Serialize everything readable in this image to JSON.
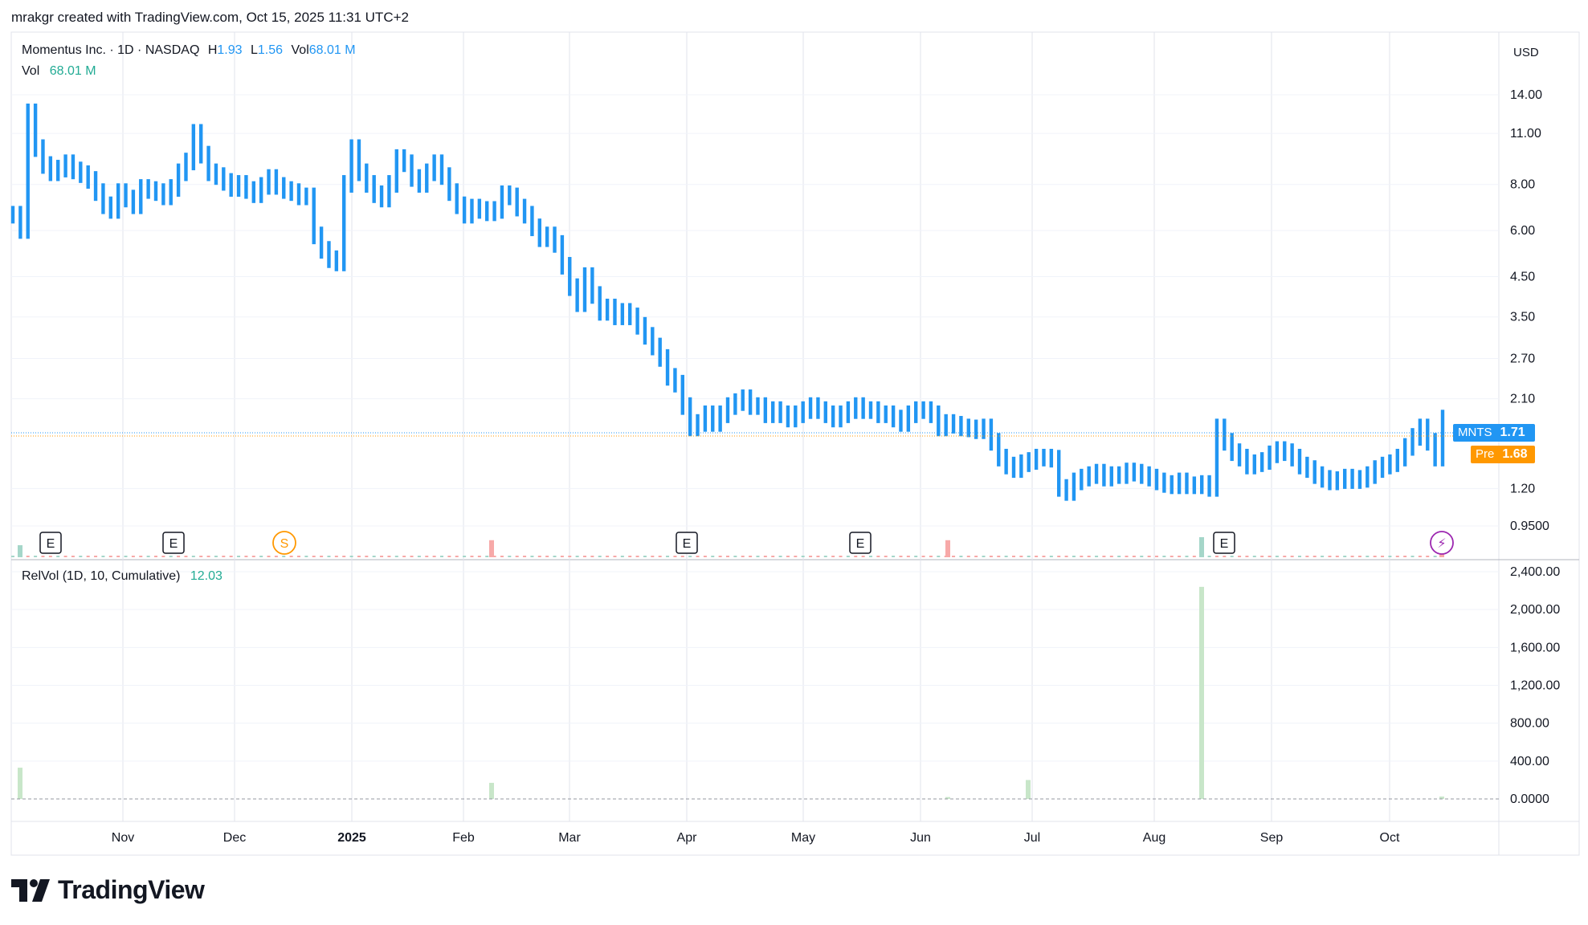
{
  "header": {
    "text": "mrakgr created with TradingView.com, Oct 15, 2025 11:31 UTC+2"
  },
  "legend": {
    "title": "Momentus Inc. · 1D · NASDAQ",
    "h_label": "H",
    "h_value": "1.93",
    "l_label": "L",
    "l_value": "1.56",
    "vol_label": "Vol",
    "vol_value": "68.01 M",
    "vol2_label": "Vol",
    "vol2_value": "68.01 M",
    "relvol_label": "RelVol (1D, 10, Cumulative)",
    "relvol_value": "12.03"
  },
  "price_axis": {
    "currency": "USD"
  },
  "tags": {
    "mnts_symbol": "MNTS",
    "mnts_value": "1.71",
    "pre_symbol": "Pre",
    "pre_value": "1.68"
  },
  "brand": {
    "name": "TradingView"
  },
  "colors": {
    "up": "#2196f3",
    "relvol": "#c8e6c9",
    "vol_up": "#a5d6c9",
    "vol_down": "#f7a9a8",
    "grid": "#e0e3eb",
    "pre": "#ff9800"
  },
  "chart_data": [
    {
      "type": "bar",
      "subtype": "ohlc-price",
      "title": "Momentus Inc. · 1D · NASDAQ",
      "scale": "log",
      "y_ticks": [
        "14.00",
        "11.00",
        "8.00",
        "6.00",
        "4.50",
        "3.50",
        "2.70",
        "2.10",
        "1.20",
        "0.9500"
      ],
      "y_tick_values": [
        14.0,
        11.0,
        8.0,
        6.0,
        4.5,
        3.5,
        2.7,
        2.1,
        1.2,
        0.95
      ],
      "x_ticks": [
        "Nov",
        "Dec",
        "2025",
        "Feb",
        "Mar",
        "Apr",
        "May",
        "Jun",
        "Jul",
        "Aug",
        "Sep",
        "Oct"
      ],
      "events": [
        {
          "label": "E",
          "date": "Oct 2024"
        },
        {
          "label": "E",
          "date": "Nov 2024"
        },
        {
          "label": "S",
          "date": "Dec 2024"
        },
        {
          "label": "E",
          "date": "Apr 2025"
        },
        {
          "label": "E",
          "date": "May 2025"
        },
        {
          "label": "E",
          "date": "Aug 2025"
        },
        {
          "label": "⚡",
          "date": "Oct 2025"
        }
      ],
      "series": [
        {
          "values": [
            6.6,
            6.0,
            12.5,
            10.0,
            9.0,
            8.6,
            8.8,
            9.1,
            8.7,
            8.5,
            8.2,
            7.6,
            7.0,
            6.8,
            7.6,
            7.3,
            7.0,
            7.8,
            7.7,
            7.6,
            7.4,
            7.8,
            8.6,
            9.2,
            11.0,
            9.6,
            8.6,
            8.4,
            8.1,
            7.8,
            8.0,
            7.7,
            7.5,
            7.9,
            8.3,
            7.9,
            7.7,
            7.6,
            7.4,
            7.4,
            5.8,
            5.3,
            5.0,
            4.9,
            8.0,
            10.0,
            8.6,
            8.0,
            7.5,
            7.3,
            8.0,
            9.4,
            9.1,
            8.3,
            8.0,
            8.6,
            9.1,
            8.4,
            7.6,
            7.0,
            6.6,
            6.9,
            6.8,
            6.7,
            6.8,
            7.5,
            7.4,
            6.9,
            6.6,
            6.1,
            5.7,
            5.8,
            5.5,
            4.8,
            4.2,
            3.8,
            4.5,
            4.0,
            3.6,
            3.7,
            3.5,
            3.6,
            3.5,
            3.3,
            3.1,
            2.9,
            2.7,
            2.4,
            2.3,
            2.0,
            1.75,
            1.8,
            1.9,
            1.8,
            1.9,
            2.0,
            2.05,
            2.1,
            2.0,
            2.0,
            1.9,
            1.95,
            1.9,
            1.85,
            1.9,
            1.95,
            2.0,
            1.95,
            1.9,
            1.85,
            1.9,
            1.95,
            2.0,
            1.95,
            1.95,
            1.9,
            1.9,
            1.85,
            1.8,
            1.9,
            1.95,
            1.95,
            1.9,
            1.75,
            1.8,
            1.78,
            1.75,
            1.74,
            1.72,
            1.75,
            1.6,
            1.45,
            1.38,
            1.35,
            1.4,
            1.42,
            1.45,
            1.45,
            1.44,
            1.2,
            1.17,
            1.25,
            1.28,
            1.3,
            1.32,
            1.28,
            1.3,
            1.3,
            1.33,
            1.32,
            1.3,
            1.28,
            1.25,
            1.23,
            1.22,
            1.25,
            1.22,
            1.22,
            1.23,
            1.2,
            1.75,
            1.6,
            1.5,
            1.45,
            1.38,
            1.4,
            1.42,
            1.48,
            1.52,
            1.5,
            1.45,
            1.38,
            1.35,
            1.3,
            1.27,
            1.25,
            1.26,
            1.28,
            1.26,
            1.27,
            1.3,
            1.35,
            1.38,
            1.4,
            1.45,
            1.55,
            1.65,
            1.75,
            1.6,
            1.45,
            1.85
          ]
        }
      ]
    },
    {
      "type": "bar",
      "subtype": "volume",
      "title": "Vol",
      "highlights": [
        {
          "date": "Oct 2024",
          "relative": 0.6,
          "direction": "up"
        },
        {
          "date": "Feb 2025",
          "relative": 0.85,
          "direction": "down"
        },
        {
          "date": "Jun 2025",
          "relative": 0.85,
          "direction": "down"
        },
        {
          "date": "Aug 2025",
          "relative": 1.0,
          "direction": "up"
        },
        {
          "date": "Oct 2025",
          "relative": 0.55,
          "direction": "down"
        }
      ]
    },
    {
      "type": "bar",
      "subtype": "relvol",
      "title": "RelVol (1D, 10, Cumulative)",
      "y_ticks": [
        "2,400.00",
        "2,000.00",
        "1,600.00",
        "1,200.00",
        "800.00",
        "400.00",
        "0.0000"
      ],
      "ylim": [
        0,
        2400
      ],
      "bars": [
        {
          "date": "Oct 2024",
          "value": 330
        },
        {
          "date": "Feb 2025",
          "value": 170
        },
        {
          "date": "Jun 2025",
          "value": 20
        },
        {
          "date": "Jul 2025",
          "value": 200
        },
        {
          "date": "Aug 2025",
          "value": 2240
        },
        {
          "date": "Oct 2025",
          "value": 25
        }
      ]
    }
  ]
}
